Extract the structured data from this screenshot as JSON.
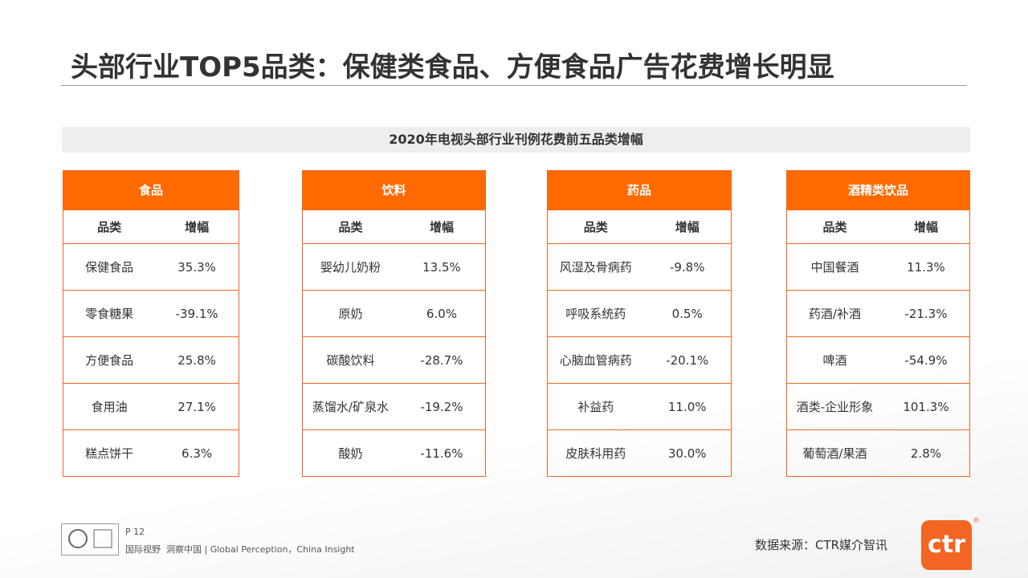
{
  "header": {
    "title": "头部行业TOP5品类：保健类食品、方便食品广告花费增长明显"
  },
  "banner": {
    "title": "2020年电视头部行业刊例花费前五品类增幅"
  },
  "tables": [
    {
      "title": "食品",
      "columns": [
        "品类",
        "增幅"
      ],
      "rows": [
        [
          "保健食品",
          "35.3%"
        ],
        [
          "零食糖果",
          "-39.1%"
        ],
        [
          "方便食品",
          "25.8%"
        ],
        [
          "食用油",
          "27.1%"
        ],
        [
          "糕点饼干",
          "6.3%"
        ]
      ]
    },
    {
      "title": "饮料",
      "columns": [
        "品类",
        "增幅"
      ],
      "rows": [
        [
          "婴幼儿奶粉",
          "13.5%"
        ],
        [
          "原奶",
          "6.0%"
        ],
        [
          "碳酸饮料",
          "-28.7%"
        ],
        [
          "蒸馏水/矿泉水",
          "-19.2%"
        ],
        [
          "酸奶",
          "-11.6%"
        ]
      ]
    },
    {
      "title": "药品",
      "columns": [
        "品类",
        "增幅"
      ],
      "rows": [
        [
          "风湿及骨病药",
          "-9.8%"
        ],
        [
          "呼吸系统药",
          "0.5%"
        ],
        [
          "心脑血管病药",
          "-20.1%"
        ],
        [
          "补益药",
          "11.0%"
        ],
        [
          "皮肤科用药",
          "30.0%"
        ]
      ]
    },
    {
      "title": "酒精类饮品",
      "columns": [
        "品类",
        "增幅"
      ],
      "rows": [
        [
          "中国餐酒",
          "11.3%"
        ],
        [
          "药酒/补酒",
          "-21.3%"
        ],
        [
          "啤酒",
          "-54.9%"
        ],
        [
          "酒类-企业形象",
          "101.3%"
        ],
        [
          "葡萄酒/果酒",
          "2.8%"
        ]
      ]
    }
  ],
  "footer": {
    "page": "P 12",
    "tagline": "国际视野  洞察中国 | Global Perception，China Insight",
    "source": "数据来源：CTR媒介智讯",
    "logo": "ctr"
  }
}
